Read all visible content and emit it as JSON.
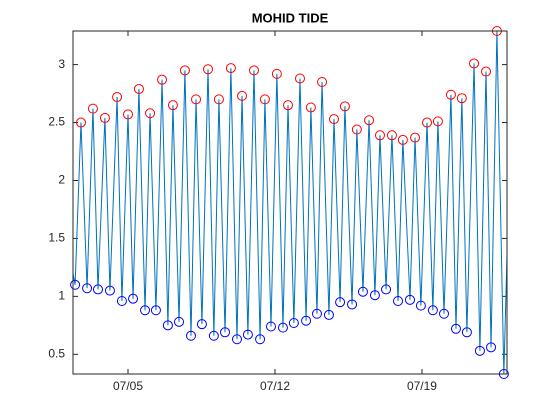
{
  "chart_data": {
    "type": "line",
    "title": "MOHID TIDE",
    "xlim": [
      2.38,
      23.05
    ],
    "xticks": [
      {
        "value": 5,
        "label": "07/05"
      },
      {
        "value": 12,
        "label": "07/12"
      },
      {
        "value": 19,
        "label": "07/19"
      }
    ],
    "ylim": [
      0.33,
      3.29
    ],
    "yticks": [
      0.5,
      1,
      1.5,
      2,
      2.5,
      3
    ],
    "series": [
      {
        "type": "line",
        "color": "#0072bd",
        "x": [
          2.38,
          2.48,
          2.76,
          3.05,
          3.33,
          3.57,
          3.9,
          4.14,
          4.48,
          4.71,
          5.0,
          5.24,
          5.52,
          5.81,
          6.05,
          6.33,
          6.62,
          6.9,
          7.14,
          7.43,
          7.71,
          8.0,
          8.24,
          8.52,
          8.81,
          9.09,
          9.33,
          9.62,
          9.9,
          10.19,
          10.43,
          10.71,
          11.0,
          11.29,
          11.52,
          11.81,
          12.09,
          12.38,
          12.62,
          12.9,
          13.19,
          13.48,
          13.71,
          14.0,
          14.24,
          14.57,
          14.81,
          15.1,
          15.33,
          15.67,
          15.9,
          16.19,
          16.48,
          16.76,
          17.0,
          17.29,
          17.57,
          17.86,
          18.09,
          18.43,
          18.67,
          18.95,
          19.24,
          19.52,
          19.76,
          20.05,
          20.38,
          20.62,
          20.9,
          21.14,
          21.48,
          21.76,
          22.05,
          22.29,
          22.57,
          22.9,
          23.05
        ],
        "values": [
          1.2,
          1.1,
          2.5,
          1.07,
          2.62,
          1.06,
          2.54,
          1.05,
          2.72,
          0.96,
          2.57,
          0.98,
          2.79,
          0.88,
          2.58,
          0.88,
          2.87,
          0.75,
          2.65,
          0.78,
          2.95,
          0.66,
          2.7,
          0.76,
          2.96,
          0.66,
          2.7,
          0.69,
          2.97,
          0.63,
          2.73,
          0.67,
          2.95,
          0.63,
          2.7,
          0.74,
          2.92,
          0.73,
          2.65,
          0.77,
          2.88,
          0.79,
          2.63,
          0.85,
          2.85,
          0.84,
          2.53,
          0.95,
          2.64,
          0.93,
          2.44,
          1.04,
          2.52,
          1.01,
          2.39,
          1.06,
          2.39,
          0.96,
          2.35,
          0.97,
          2.37,
          0.92,
          2.5,
          0.88,
          2.51,
          0.85,
          2.74,
          0.72,
          2.71,
          0.69,
          3.01,
          0.53,
          2.94,
          0.56,
          3.29,
          0.33,
          1.35
        ]
      },
      {
        "type": "scatter",
        "color": "#ff0000",
        "x": [
          2.76,
          3.33,
          3.9,
          4.48,
          5.0,
          5.52,
          6.05,
          6.62,
          7.14,
          7.71,
          8.24,
          8.81,
          9.33,
          9.9,
          10.43,
          11.0,
          11.52,
          12.09,
          12.62,
          13.19,
          13.71,
          14.24,
          14.81,
          15.33,
          15.9,
          16.48,
          17.0,
          17.57,
          18.09,
          18.67,
          19.24,
          19.76,
          20.38,
          20.9,
          21.48,
          22.05,
          22.57
        ],
        "values": [
          2.5,
          2.62,
          2.54,
          2.72,
          2.57,
          2.79,
          2.58,
          2.87,
          2.65,
          2.95,
          2.7,
          2.96,
          2.7,
          2.97,
          2.73,
          2.95,
          2.7,
          2.92,
          2.65,
          2.88,
          2.63,
          2.85,
          2.53,
          2.64,
          2.44,
          2.52,
          2.39,
          2.39,
          2.35,
          2.37,
          2.5,
          2.51,
          2.74,
          2.71,
          3.01,
          2.94,
          3.29
        ]
      },
      {
        "type": "scatter",
        "color": "#0000ff",
        "x": [
          2.48,
          3.05,
          3.57,
          4.14,
          4.71,
          5.24,
          5.81,
          6.33,
          6.9,
          7.43,
          8.0,
          8.52,
          9.09,
          9.62,
          10.19,
          10.71,
          11.29,
          11.81,
          12.38,
          12.9,
          13.48,
          14.0,
          14.57,
          15.1,
          15.67,
          16.19,
          16.76,
          17.29,
          17.86,
          18.43,
          18.95,
          19.52,
          20.05,
          20.62,
          21.14,
          21.76,
          22.29,
          22.9
        ],
        "values": [
          1.1,
          1.07,
          1.06,
          1.05,
          0.96,
          0.98,
          0.88,
          0.88,
          0.75,
          0.78,
          0.66,
          0.76,
          0.66,
          0.69,
          0.63,
          0.67,
          0.63,
          0.74,
          0.73,
          0.77,
          0.79,
          0.85,
          0.84,
          0.95,
          0.93,
          1.04,
          1.01,
          1.06,
          0.96,
          0.97,
          0.92,
          0.88,
          0.85,
          0.72,
          0.69,
          0.53,
          0.56,
          0.33
        ]
      }
    ]
  }
}
